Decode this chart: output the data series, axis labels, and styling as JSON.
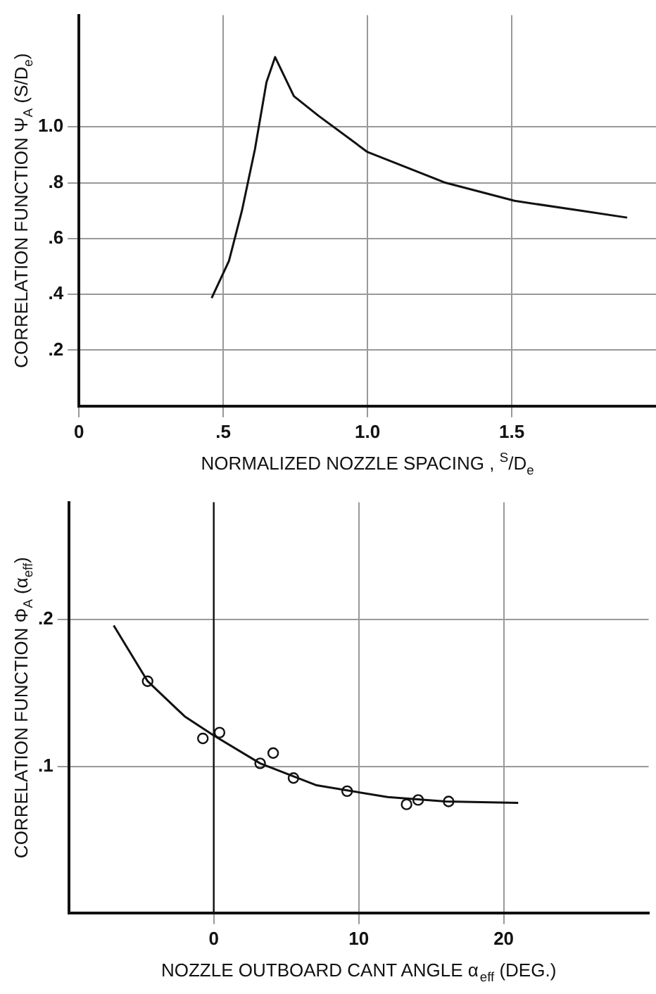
{
  "chart_data": [
    {
      "type": "line",
      "xlabel": "NORMALIZED NOZZLE SPACING , $^{S}$/D$_{e}$",
      "ylabel": "CORRELATION FUNCTION Ψ$_{A}$ (S/D$_{e}$)",
      "xlim": [
        0,
        2
      ],
      "ylim": [
        0,
        1.4
      ],
      "xticks": [
        0,
        {
          "value": 0.5,
          "label": ".5"
        },
        {
          "value": 1,
          "label": "1.0"
        },
        1.5
      ],
      "yticks": [
        {
          "value": 0.2,
          "label": ".2"
        },
        {
          "value": 0.4,
          "label": ".4"
        },
        {
          "value": 0.6,
          "label": ".6"
        },
        {
          "value": 0.8,
          "label": ".8"
        },
        {
          "value": 1,
          "label": "1.0"
        }
      ],
      "grid": true,
      "legend": false,
      "marker": "none",
      "line_style": "solid",
      "series": [
        {
          "color": "#111111",
          "x": [
            0.46,
            0.52,
            0.565,
            0.61,
            0.65,
            0.68,
            0.745,
            0.83,
            1.0,
            1.27,
            1.51,
            1.74,
            1.9
          ],
          "values": [
            0.387,
            0.52,
            0.7,
            0.92,
            1.16,
            1.25,
            1.11,
            1.04,
            0.91,
            0.8,
            0.735,
            0.7,
            0.675
          ]
        }
      ]
    },
    {
      "type": "scatter",
      "xlabel": "NOZZLE OUTBOARD CANT ANGLE α$_{eff}$ (DEG.)",
      "ylabel": "CORRELATION FUNCTION Φ$_{A}$ (α$_{eff}$)",
      "xlim": [
        -10,
        30
      ],
      "ylim": [
        0,
        0.28
      ],
      "xticks": [
        0,
        10,
        20
      ],
      "yticks": [
        {
          "value": 0.1,
          "label": ".1"
        },
        {
          "value": 0.2,
          "label": ".2"
        }
      ],
      "grid": true,
      "legend": false,
      "marker": "circle",
      "ref_lines": [
        {
          "axis": "x",
          "value": 0
        }
      ],
      "series": [
        {
          "color": "#111111",
          "x": [
            -4.56,
            -0.75,
            0.4,
            3.2,
            4.1,
            5.5,
            9.2,
            13.3,
            14.1,
            16.2
          ],
          "values": [
            0.158,
            0.119,
            0.123,
            0.102,
            0.109,
            0.092,
            0.083,
            0.074,
            0.077,
            0.076
          ]
        },
        {
          "type": "line",
          "marker": "none",
          "line_style": "solid",
          "color": "#111111",
          "x": [
            -6.9,
            -4.56,
            -2,
            0,
            3.2,
            7.1,
            12,
            16,
            21
          ],
          "values": [
            0.196,
            0.158,
            0.134,
            0.121,
            0.102,
            0.087,
            0.079,
            0.076,
            0.075
          ]
        }
      ]
    }
  ]
}
